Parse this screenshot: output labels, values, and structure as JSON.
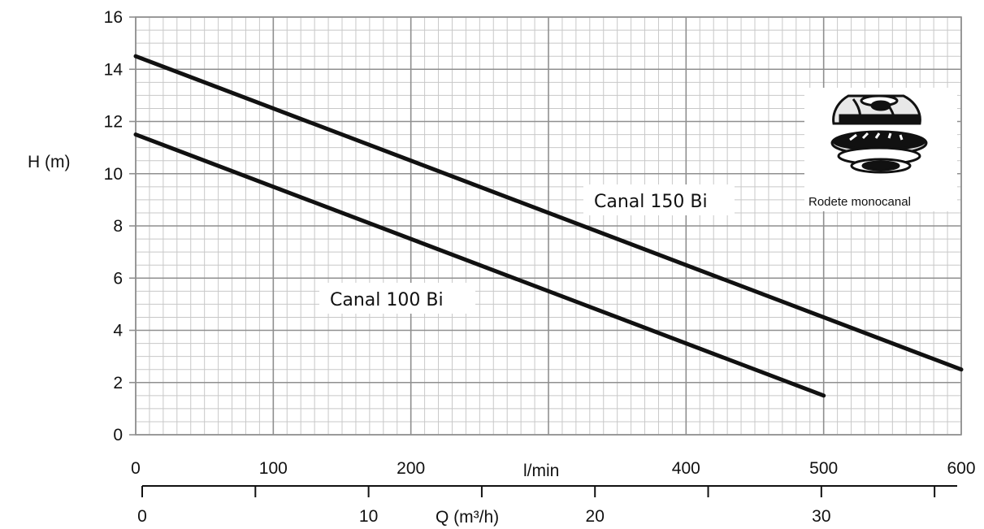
{
  "chart_data": {
    "type": "line",
    "ylabel": "H (m)",
    "xlabel": "l/min",
    "ylim": [
      0,
      16
    ],
    "xlim": [
      0,
      600
    ],
    "y_ticks": [
      "0",
      "2",
      "4",
      "6",
      "8",
      "10",
      "12",
      "14",
      "16"
    ],
    "x_ticks": [
      "0",
      "100",
      "200",
      "",
      "400",
      "500",
      "600"
    ],
    "grid": true,
    "secondary_x_axis": {
      "label": "Q (m³/h)",
      "ticks": [
        "0",
        "10",
        "20",
        "30"
      ],
      "range": [
        0,
        36
      ]
    },
    "series": [
      {
        "name": "Canal 150 Bi",
        "x": [
          0,
          600
        ],
        "y": [
          14.5,
          2.5
        ]
      },
      {
        "name": "Canal 100 Bi",
        "x": [
          0,
          500
        ],
        "y": [
          11.5,
          1.5
        ]
      }
    ],
    "annotations": {
      "impeller_caption": "Rodete monocanal"
    }
  },
  "colors": {
    "grid_major": "#8f8f8f",
    "grid_minor": "#c8c8c8",
    "line": "#111111"
  }
}
